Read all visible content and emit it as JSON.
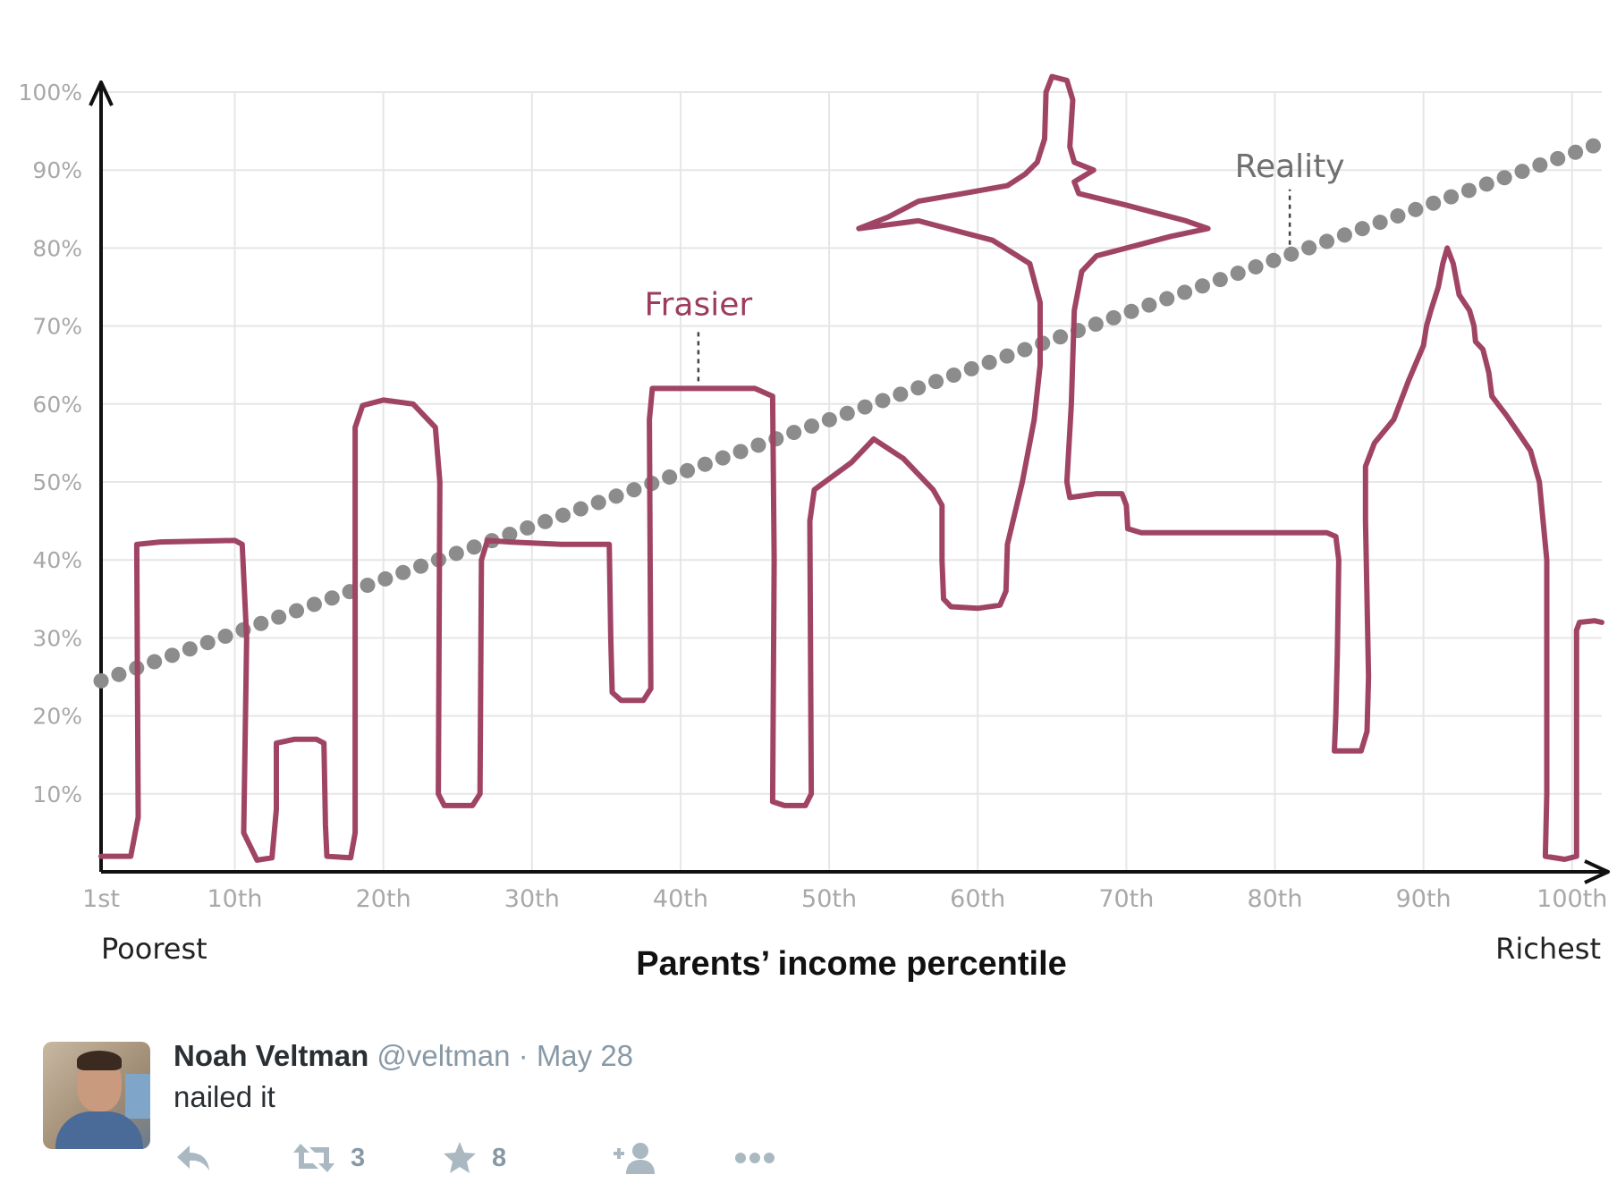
{
  "chart_data": {
    "type": "line",
    "xlabel": "Parents’ income percentile",
    "x_end_labels": {
      "left": "Poorest",
      "right": "Richest"
    },
    "x_ticks": [
      {
        "value": 1,
        "label": "1st"
      },
      {
        "value": 10,
        "label": "10th"
      },
      {
        "value": 20,
        "label": "20th"
      },
      {
        "value": 30,
        "label": "30th"
      },
      {
        "value": 40,
        "label": "40th"
      },
      {
        "value": 50,
        "label": "50th"
      },
      {
        "value": 60,
        "label": "60th"
      },
      {
        "value": 70,
        "label": "70th"
      },
      {
        "value": 80,
        "label": "80th"
      },
      {
        "value": 90,
        "label": "90th"
      },
      {
        "value": 100,
        "label": "100th"
      }
    ],
    "y_ticks": [
      {
        "value": 10,
        "label": "10%"
      },
      {
        "value": 20,
        "label": "20%"
      },
      {
        "value": 30,
        "label": "30%"
      },
      {
        "value": 40,
        "label": "40%"
      },
      {
        "value": 50,
        "label": "50%"
      },
      {
        "value": 60,
        "label": "60%"
      },
      {
        "value": 70,
        "label": "70%"
      },
      {
        "value": 80,
        "label": "80%"
      },
      {
        "value": 90,
        "label": "90%"
      },
      {
        "value": 100,
        "label": "100%"
      }
    ],
    "xlim": [
      1,
      102
    ],
    "ylim": [
      0,
      100
    ],
    "grid": true,
    "series": [
      {
        "name": "Reality",
        "style": "dotted",
        "color": "#8c8c8c",
        "start": [
          1,
          24.5
        ],
        "end": [
          102,
          93.5
        ]
      },
      {
        "name": "Frasier",
        "style": "hand-drawn",
        "color": "#a04466",
        "points": [
          [
            1,
            2
          ],
          [
            3,
            2
          ],
          [
            3.5,
            7
          ],
          [
            3.4,
            42
          ],
          [
            5,
            42.3
          ],
          [
            10,
            42.5
          ],
          [
            10.5,
            42
          ],
          [
            10.8,
            30
          ],
          [
            10.6,
            5
          ],
          [
            11.5,
            1.5
          ],
          [
            12.5,
            1.8
          ],
          [
            12.8,
            8
          ],
          [
            12.8,
            16.5
          ],
          [
            14,
            17
          ],
          [
            15.5,
            17
          ],
          [
            16,
            16.5
          ],
          [
            16.1,
            6
          ],
          [
            16.2,
            2
          ],
          [
            17.8,
            1.8
          ],
          [
            18.1,
            5
          ],
          [
            18.1,
            57
          ],
          [
            18.6,
            59.8
          ],
          [
            20,
            60.5
          ],
          [
            22,
            60
          ],
          [
            23.5,
            57
          ],
          [
            23.8,
            50
          ],
          [
            23.7,
            10
          ],
          [
            24.1,
            8.5
          ],
          [
            26,
            8.5
          ],
          [
            26.5,
            10
          ],
          [
            26.6,
            40
          ],
          [
            27,
            42.5
          ],
          [
            28.5,
            42.3
          ],
          [
            32,
            42
          ],
          [
            35.2,
            42
          ],
          [
            35.3,
            30
          ],
          [
            35.4,
            23
          ],
          [
            36,
            22
          ],
          [
            37.5,
            22
          ],
          [
            38,
            23.5
          ],
          [
            37.9,
            58
          ],
          [
            38.1,
            62
          ],
          [
            41,
            62
          ],
          [
            45,
            62
          ],
          [
            46.2,
            61
          ],
          [
            46.3,
            40
          ],
          [
            46.2,
            9
          ],
          [
            47,
            8.5
          ],
          [
            48.4,
            8.5
          ],
          [
            48.8,
            10
          ],
          [
            48.7,
            45
          ],
          [
            49,
            49
          ],
          [
            51.5,
            52.5
          ],
          [
            53,
            55.5
          ],
          [
            55,
            53
          ],
          [
            57,
            49
          ],
          [
            57.6,
            47
          ],
          [
            57.6,
            40
          ],
          [
            57.7,
            35
          ],
          [
            58.2,
            34
          ],
          [
            60,
            33.8
          ],
          [
            61.5,
            34.2
          ],
          [
            61.9,
            36
          ],
          [
            62,
            42
          ],
          [
            63,
            50
          ],
          [
            63.8,
            58
          ],
          [
            64.2,
            65
          ],
          [
            64.2,
            73
          ],
          [
            63.5,
            78
          ],
          [
            61,
            81
          ],
          [
            59,
            82
          ],
          [
            56,
            83.5
          ],
          [
            52,
            82.5
          ],
          [
            54,
            84
          ],
          [
            56,
            86
          ],
          [
            59,
            87
          ],
          [
            62,
            88
          ],
          [
            63.2,
            89.5
          ],
          [
            64,
            91
          ],
          [
            64.5,
            94
          ],
          [
            64.6,
            100
          ],
          [
            65,
            102
          ],
          [
            66,
            101.5
          ],
          [
            66.4,
            99
          ],
          [
            66.2,
            93
          ],
          [
            66.5,
            91
          ],
          [
            67.8,
            90
          ],
          [
            66.5,
            88.5
          ],
          [
            66.8,
            87
          ],
          [
            70,
            85.5
          ],
          [
            72,
            84.5
          ],
          [
            74,
            83.5
          ],
          [
            75.5,
            82.5
          ],
          [
            73,
            81.5
          ],
          [
            70,
            80
          ],
          [
            68,
            79
          ],
          [
            67,
            77
          ],
          [
            66.5,
            72
          ],
          [
            66.3,
            60
          ],
          [
            66,
            50
          ],
          [
            66.2,
            48
          ],
          [
            68,
            48.5
          ],
          [
            69.7,
            48.5
          ],
          [
            70,
            47
          ],
          [
            70.1,
            44
          ],
          [
            71,
            43.5
          ],
          [
            73,
            43.5
          ],
          [
            80,
            43.5
          ],
          [
            83.5,
            43.5
          ],
          [
            84.1,
            43
          ],
          [
            84.3,
            40
          ],
          [
            84.2,
            28
          ],
          [
            84.1,
            20
          ],
          [
            84,
            15.5
          ],
          [
            85.8,
            15.5
          ],
          [
            86.2,
            18
          ],
          [
            86.3,
            25
          ],
          [
            86.1,
            45
          ],
          [
            86.1,
            52
          ],
          [
            86.7,
            55
          ],
          [
            88,
            58
          ],
          [
            89,
            63
          ],
          [
            90,
            67.5
          ],
          [
            90.2,
            70
          ],
          [
            90.5,
            72
          ],
          [
            91,
            75
          ],
          [
            91.3,
            78
          ],
          [
            91.6,
            80
          ],
          [
            92,
            78
          ],
          [
            92.4,
            74
          ],
          [
            93.1,
            72
          ],
          [
            93.4,
            70
          ],
          [
            93.5,
            68
          ],
          [
            94,
            67
          ],
          [
            94.4,
            64
          ],
          [
            94.6,
            61
          ],
          [
            95,
            60
          ],
          [
            95.6,
            58.5
          ],
          [
            96.5,
            56
          ],
          [
            97.2,
            54
          ],
          [
            97.8,
            50
          ],
          [
            98.3,
            40
          ],
          [
            98.3,
            10
          ],
          [
            98.2,
            2
          ],
          [
            99.5,
            1.6
          ],
          [
            100.3,
            2
          ],
          [
            100.3,
            10
          ],
          [
            100.3,
            31
          ],
          [
            100.5,
            32
          ],
          [
            101.5,
            32.2
          ],
          [
            102,
            32
          ]
        ]
      }
    ],
    "annotations": [
      {
        "text": "Frasier",
        "series": "Frasier",
        "x": 41.2,
        "y": 62
      },
      {
        "text": "Reality",
        "series": "Reality",
        "x": 81,
        "y": 79.5
      }
    ]
  },
  "tweet": {
    "name": "Noah Veltman",
    "handle": "@veltman",
    "separator": "·",
    "date": "May 28",
    "text": "nailed it",
    "retweet_count": "3",
    "favorite_count": "8",
    "icons": [
      "reply-icon",
      "retweet-icon",
      "favorite-icon",
      "follow-icon",
      "more-icon"
    ]
  }
}
